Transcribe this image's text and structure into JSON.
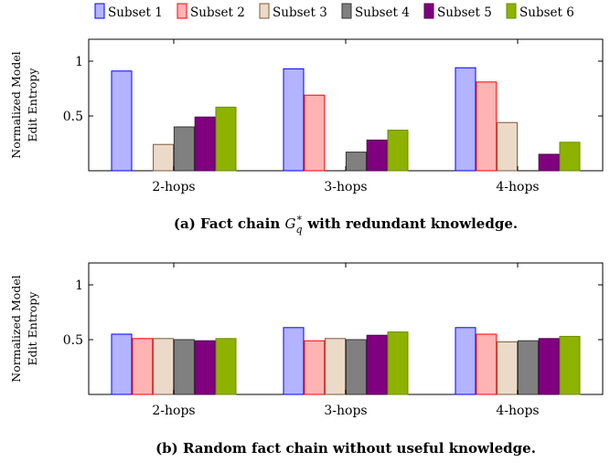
{
  "legend": [
    "Subset 1",
    "Subset 2",
    "Subset 3",
    "Subset 4",
    "Subset 5",
    "Subset 6"
  ],
  "colors": {
    "fills": [
      "#b3b3ff",
      "#ffb3b3",
      "#ecdac9",
      "#808080",
      "#800080",
      "#8db300"
    ],
    "strokes": [
      "#0000ff",
      "#ff0000",
      "#7a5a3a",
      "#333333",
      "#4d004d",
      "#6b8a00"
    ]
  },
  "chart_data": [
    {
      "type": "bar",
      "categories": [
        "2-hops",
        "3-hops",
        "4-hops"
      ],
      "series": [
        {
          "name": "Subset 1",
          "values": [
            0.91,
            0.93,
            0.94
          ]
        },
        {
          "name": "Subset 2",
          "values": [
            0.0,
            0.69,
            0.81
          ]
        },
        {
          "name": "Subset 3",
          "values": [
            0.24,
            0.0,
            0.44
          ]
        },
        {
          "name": "Subset 4",
          "values": [
            0.4,
            0.17,
            0.0
          ]
        },
        {
          "name": "Subset 5",
          "values": [
            0.49,
            0.28,
            0.15
          ]
        },
        {
          "name": "Subset 6",
          "values": [
            0.58,
            0.37,
            0.26
          ]
        }
      ],
      "ylabel": [
        "Normalized Model",
        "Edit Entropy"
      ],
      "yticks": [
        0.5,
        1
      ],
      "ytick_labels": [
        "0.5",
        "1"
      ],
      "ylim": [
        0,
        1.2
      ],
      "caption_prefix": "(a) Fact chain ",
      "caption_math": "G",
      "caption_sub": "q",
      "caption_sup": "∗",
      "caption_suffix": " with redundant knowledge."
    },
    {
      "type": "bar",
      "categories": [
        "2-hops",
        "3-hops",
        "4-hops"
      ],
      "series": [
        {
          "name": "Subset 1",
          "values": [
            0.55,
            0.61,
            0.61
          ]
        },
        {
          "name": "Subset 2",
          "values": [
            0.51,
            0.49,
            0.55
          ]
        },
        {
          "name": "Subset 3",
          "values": [
            0.51,
            0.51,
            0.48
          ]
        },
        {
          "name": "Subset 4",
          "values": [
            0.5,
            0.5,
            0.49
          ]
        },
        {
          "name": "Subset 5",
          "values": [
            0.49,
            0.54,
            0.51
          ]
        },
        {
          "name": "Subset 6",
          "values": [
            0.51,
            0.57,
            0.53
          ]
        }
      ],
      "ylabel": [
        "Normalized Model",
        "Edit Entropy"
      ],
      "yticks": [
        0.5,
        1
      ],
      "ytick_labels": [
        "0.5",
        "1"
      ],
      "ylim": [
        0,
        1.2
      ],
      "caption": "(b) Random fact chain without useful knowledge."
    }
  ]
}
